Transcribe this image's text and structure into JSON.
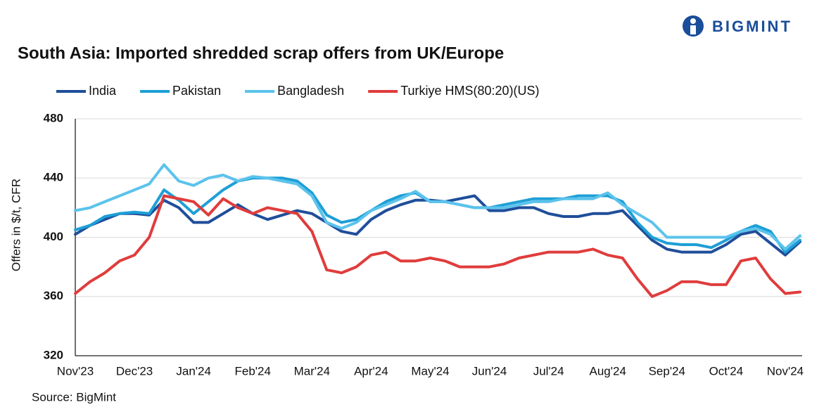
{
  "brand": "BIGMINT",
  "chart_data": {
    "type": "line",
    "title": "South Asia: Imported shredded scrap offers from UK/Europe",
    "y_label": "Offers in $/t, CFR",
    "source": "Source: BigMint",
    "categories": [
      "Nov'23",
      null,
      null,
      null,
      "Dec'23",
      null,
      null,
      null,
      "Jan'24",
      null,
      null,
      null,
      "Feb'24",
      null,
      null,
      null,
      "Mar'24",
      null,
      null,
      null,
      "Apr'24",
      null,
      null,
      null,
      "May'24",
      null,
      null,
      null,
      "Jun'24",
      null,
      null,
      null,
      "Jul'24",
      null,
      null,
      null,
      "Aug'24",
      null,
      null,
      null,
      "Sep'24",
      null,
      null,
      null,
      "Oct'24",
      null,
      null,
      null,
      "Nov'24",
      null
    ],
    "series": [
      {
        "name": "India",
        "color": "#1f4e9a",
        "values": [
          402,
          408,
          412,
          416,
          416,
          415,
          425,
          420,
          410,
          410,
          416,
          422,
          416,
          412,
          415,
          418,
          416,
          410,
          404,
          402,
          412,
          418,
          422,
          425,
          425,
          424,
          426,
          428,
          418,
          418,
          420,
          420,
          416,
          414,
          414,
          416,
          416,
          418,
          408,
          398,
          392,
          390,
          390,
          390,
          395,
          402,
          404,
          396,
          388,
          397
        ]
      },
      {
        "name": "Pakistan",
        "color": "#1e9fd6",
        "values": [
          405,
          408,
          414,
          416,
          417,
          416,
          432,
          425,
          416,
          424,
          432,
          438,
          440,
          440,
          440,
          438,
          430,
          415,
          410,
          412,
          418,
          424,
          428,
          430,
          424,
          424,
          422,
          420,
          420,
          422,
          424,
          426,
          426,
          426,
          428,
          428,
          428,
          424,
          410,
          400,
          396,
          395,
          395,
          393,
          398,
          404,
          408,
          404,
          390,
          398
        ]
      },
      {
        "name": "Bangladesh",
        "color": "#5bc3ec",
        "values": [
          418,
          420,
          424,
          428,
          432,
          436,
          449,
          438,
          435,
          440,
          442,
          438,
          441,
          440,
          438,
          436,
          428,
          410,
          406,
          410,
          418,
          422,
          426,
          431,
          424,
          424,
          422,
          420,
          420,
          420,
          422,
          424,
          424,
          426,
          426,
          426,
          430,
          422,
          416,
          410,
          400,
          400,
          400,
          400,
          400,
          404,
          406,
          402,
          392,
          401
        ]
      },
      {
        "name": "Turkiye HMS(80:20)(US)",
        "color": "#e03c3c",
        "values": [
          362,
          370,
          376,
          384,
          388,
          400,
          428,
          426,
          424,
          415,
          426,
          420,
          416,
          420,
          418,
          416,
          404,
          378,
          376,
          380,
          388,
          390,
          384,
          384,
          386,
          384,
          380,
          380,
          380,
          382,
          386,
          388,
          390,
          390,
          390,
          392,
          388,
          386,
          372,
          360,
          364,
          370,
          370,
          368,
          368,
          384,
          386,
          372,
          362,
          363
        ]
      }
    ],
    "ylim": [
      320,
      480
    ],
    "yticks": [
      320,
      360,
      400,
      440,
      480
    ],
    "grid": true
  }
}
